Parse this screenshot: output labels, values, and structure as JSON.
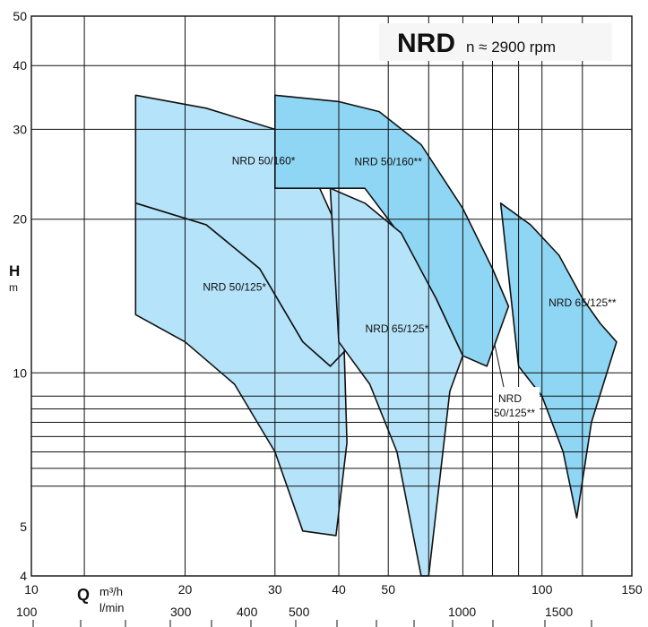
{
  "chart_data": {
    "type": "area",
    "title": "NRD",
    "subtitle": "n ≈ 2900 rpm",
    "y_label": "H",
    "y_unit": "m",
    "x_label": "Q",
    "x_unit_primary": "m³/h",
    "x_unit_secondary": "l/min",
    "x_scale": "log",
    "y_scale": "log",
    "xlim": [
      10,
      150
    ],
    "ylim": [
      4,
      50
    ],
    "grid": true,
    "x_ticks": [
      "10",
      "20",
      "30",
      "40",
      "50",
      "100",
      "150"
    ],
    "x_tick_values": [
      10,
      20,
      30,
      40,
      50,
      100,
      150
    ],
    "x_ticks_lmin": [
      "100",
      "300",
      "400",
      "500",
      "1000",
      "1500"
    ],
    "x_ticks_lmin_values": [
      6,
      18,
      24,
      30,
      60,
      90
    ],
    "y_ticks": [
      "4",
      "5",
      "10",
      "20",
      "30",
      "40",
      "50"
    ],
    "y_tick_values": [
      4,
      5,
      10,
      20,
      30,
      40,
      50
    ],
    "x_grid_values": [
      12.7,
      20,
      30,
      40,
      50,
      60,
      70,
      80,
      90,
      100,
      120
    ],
    "y_grid_values": [
      6,
      6.5,
      7,
      7.5,
      8,
      8.5,
      9,
      10,
      20,
      30,
      40
    ],
    "regions": [
      {
        "name": "NRD 50/160*",
        "color": "#b5e3fa",
        "outline": [
          [
            16,
            35
          ],
          [
            22,
            33
          ],
          [
            30,
            30
          ],
          [
            36,
            24
          ],
          [
            40,
            19
          ],
          [
            43,
            14
          ],
          [
            41,
            11
          ],
          [
            38.5,
            10.3
          ],
          [
            34,
            11.5
          ],
          [
            28,
            16
          ],
          [
            22,
            19.5
          ],
          [
            16,
            21.5
          ]
        ],
        "label_at": [
          28.5,
          25.6
        ]
      },
      {
        "name": "NRD 50/125*",
        "color": "#b5e3fa",
        "outline": [
          [
            16,
            21.5
          ],
          [
            22,
            19.5
          ],
          [
            28,
            16
          ],
          [
            34,
            11.5
          ],
          [
            38.5,
            10.3
          ],
          [
            41,
            11
          ],
          [
            41.5,
            7.3
          ],
          [
            39.5,
            4.8
          ],
          [
            34,
            4.9
          ],
          [
            30,
            7
          ],
          [
            25,
            9.5
          ],
          [
            20,
            11.5
          ],
          [
            16,
            13
          ]
        ],
        "label_at": [
          25,
          14.5
        ]
      },
      {
        "name": "NRD 50/160**",
        "color": "#8ed6f4",
        "outline": [
          [
            30,
            35
          ],
          [
            40,
            34
          ],
          [
            48,
            32.5
          ],
          [
            58,
            28
          ],
          [
            70,
            21
          ],
          [
            80,
            16
          ],
          [
            86,
            13.5
          ],
          [
            78,
            10.3
          ],
          [
            70,
            10.8
          ],
          [
            62,
            14
          ],
          [
            53,
            18.5
          ],
          [
            45,
            23
          ],
          [
            38,
            23
          ],
          [
            30,
            23
          ]
        ],
        "label_at": [
          50,
          25.5
        ]
      },
      {
        "name": "NRD 65/125*",
        "color": "#b5e3fa",
        "outline": [
          [
            38.5,
            23
          ],
          [
            45,
            21.5
          ],
          [
            53,
            18.8
          ],
          [
            62,
            14
          ],
          [
            70,
            10.8
          ],
          [
            66,
            9.2
          ],
          [
            60,
            4
          ],
          [
            58,
            4
          ],
          [
            52,
            7
          ],
          [
            46,
            9.5
          ],
          [
            40,
            11.5
          ]
        ],
        "label_at": [
          52,
          12
        ]
      },
      {
        "name": "NRD 65/125**",
        "color": "#8ed6f4",
        "outline": [
          [
            83,
            21.5
          ],
          [
            95,
            19.5
          ],
          [
            108,
            17
          ],
          [
            120,
            14
          ],
          [
            130,
            12.5
          ],
          [
            140,
            11.5
          ],
          [
            125,
            8
          ],
          [
            117,
            5.2
          ],
          [
            110,
            7
          ],
          [
            100,
            9
          ],
          [
            90,
            10.3
          ]
        ],
        "label_at": [
          120,
          13.5
        ]
      }
    ],
    "annotations": [
      {
        "text": "NRD",
        "at": [
          67,
          9.3
        ]
      },
      {
        "text": "50/125**",
        "at": [
          70,
          8.5
        ]
      }
    ]
  }
}
